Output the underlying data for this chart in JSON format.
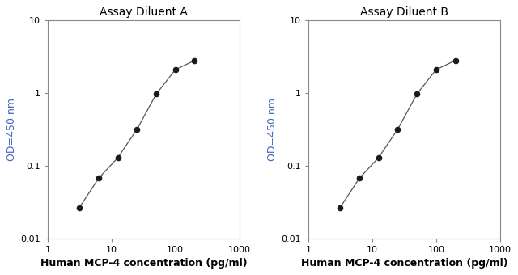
{
  "panel_A": {
    "title": "Assay Diluent A",
    "x": [
      3.125,
      6.25,
      12.5,
      25,
      50,
      100,
      200
    ],
    "y": [
      0.027,
      0.068,
      0.13,
      0.32,
      0.97,
      2.1,
      2.8
    ]
  },
  "panel_B": {
    "title": "Assay Diluent B",
    "x": [
      3.125,
      6.25,
      12.5,
      25,
      50,
      100,
      200
    ],
    "y": [
      0.027,
      0.068,
      0.13,
      0.32,
      0.97,
      2.1,
      2.8
    ]
  },
  "xlabel": "Human MCP-4 concentration (pg/ml)",
  "ylabel": "OD=450 nm",
  "xlim": [
    1,
    1000
  ],
  "ylim": [
    0.01,
    10
  ],
  "line_color": "#555555",
  "marker_color": "#1a1a1a",
  "marker_size": 4.5,
  "title_fontsize": 10,
  "xlabel_fontsize": 9,
  "ylabel_fontsize": 9,
  "tick_fontsize": 8,
  "title_color": "#000000",
  "xlabel_color": "#000000",
  "ylabel_color": "#4466bb",
  "background_color": "#ffffff",
  "spine_color": "#888888",
  "linewidth": 0.9
}
